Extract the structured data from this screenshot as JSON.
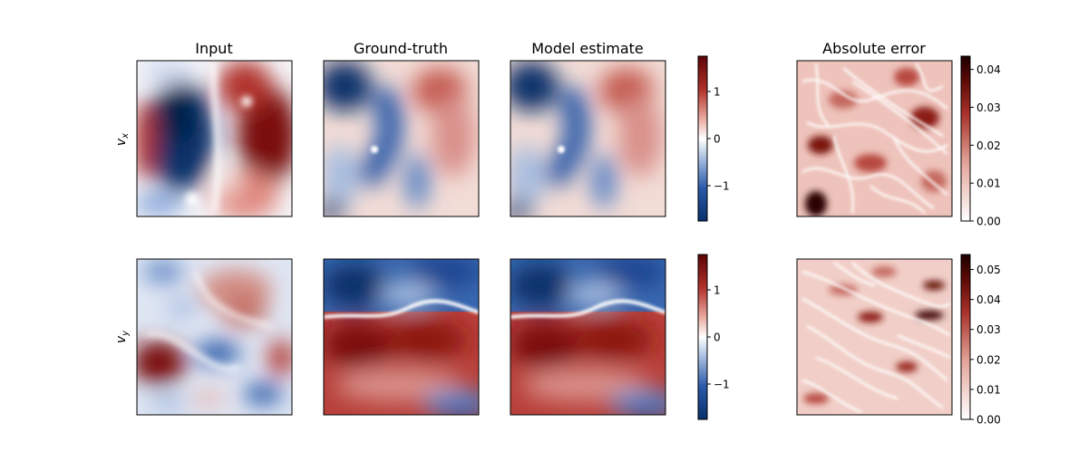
{
  "chart_data": {
    "type": "heatmap",
    "columns": [
      "Input",
      "Ground-truth",
      "Model estimate",
      "Absolute error"
    ],
    "rows": [
      {
        "row_label_base": "v",
        "row_label_sub": "x",
        "shared_colorbar": {
          "ticks": [
            1,
            0,
            -1
          ],
          "tick_labels": [
            "1",
            "0",
            "−1"
          ],
          "range": [
            -1.75,
            1.75
          ],
          "colormap": "diverging blue-white-red"
        },
        "error_colorbar": {
          "ticks": [
            0.04,
            0.03,
            0.02,
            0.01,
            0.0
          ],
          "tick_labels": [
            "0.04",
            "0.03",
            "0.02",
            "0.01",
            "0.00"
          ],
          "range": [
            0,
            0.0435
          ],
          "colormap": "white-to-darkred"
        }
      },
      {
        "row_label_base": "v",
        "row_label_sub": "y",
        "shared_colorbar": {
          "ticks": [
            1,
            0,
            -1
          ],
          "tick_labels": [
            "1",
            "0",
            "−1"
          ],
          "range": [
            -1.75,
            1.75
          ],
          "colormap": "diverging blue-white-red"
        },
        "error_colorbar": {
          "ticks": [
            0.05,
            0.04,
            0.03,
            0.02,
            0.01,
            0.0
          ],
          "tick_labels": [
            "0.05",
            "0.04",
            "0.03",
            "0.02",
            "0.01",
            "0.00"
          ],
          "range": [
            0,
            0.055
          ],
          "colormap": "white-to-darkred"
        }
      }
    ],
    "colors": {
      "neg": "#08306b",
      "zero": "#ffffff",
      "pos": "#67000d",
      "frame": "#000000"
    }
  }
}
